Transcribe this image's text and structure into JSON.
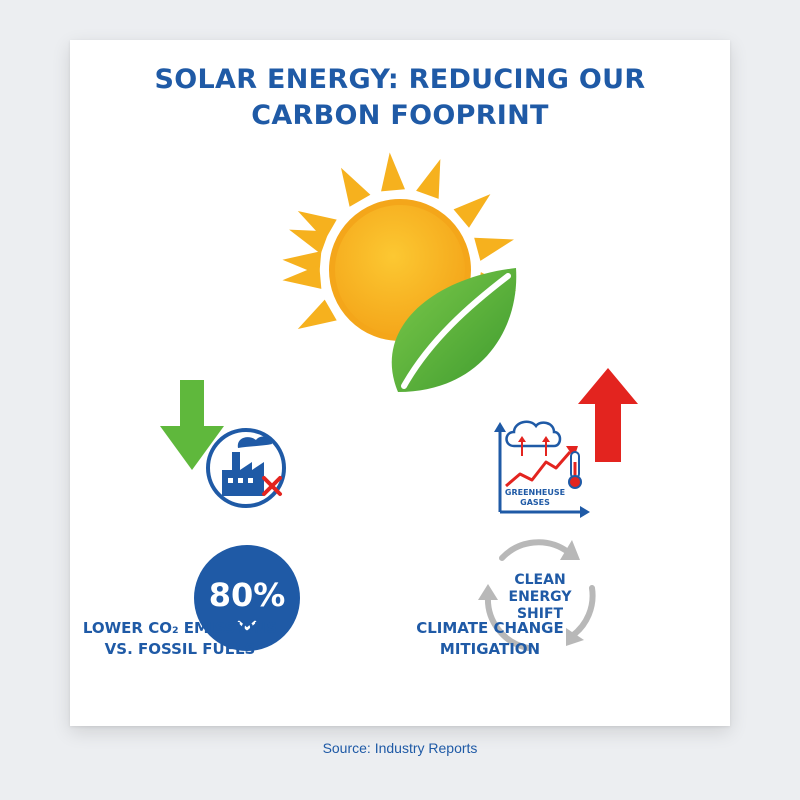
{
  "title": {
    "line1": "SOLAR ENERGY: REDUCING OUR",
    "line2": "CARBON FOOPRINT"
  },
  "emissions": {
    "stat_value": "80%",
    "caption_line1": "LOWER CO₂ EMISSIONS",
    "caption_line2": "VS. FOSSIL FUELS"
  },
  "greenhouse": {
    "label_line1": "GREENHEUSE",
    "label_line2": "GASES"
  },
  "cycle": {
    "line1": "CLEAN",
    "line2": "ENERGY",
    "line3": "SHIFT",
    "caption_line1": "CLIMATE CHANGE",
    "caption_line2": "MITIGATION"
  },
  "source": "Source: Industry Reports",
  "colors": {
    "title_blue": "#1f5aa6",
    "sun_yellow": "#f6b11e",
    "leaf_green": "#5fb83c",
    "arrow_red": "#e3241f",
    "arrow_green": "#5fb83c",
    "cycle_gray": "#b8b8b8"
  },
  "icons": [
    "sun-icon",
    "leaf-icon",
    "down-arrow-icon",
    "factory-icon",
    "up-arrow-icon",
    "greenhouse-chart-icon",
    "cloud-icon",
    "thermometer-icon",
    "cycle-arrows-icon",
    "chevron-down-icon"
  ]
}
